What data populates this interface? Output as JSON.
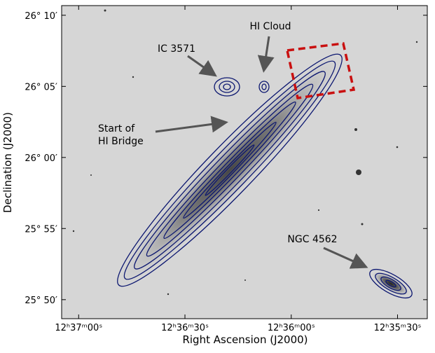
{
  "chart_data": {
    "type": "image",
    "xlabel": "Right Ascension (J2000)",
    "ylabel": "Declination (J2000)",
    "xlim": [
      189.27,
      188.84
    ],
    "ylim": [
      25.811,
      26.178
    ],
    "xticks": [
      {
        "value": 189.25,
        "label": "12ʰ37ᵐ00ˢ"
      },
      {
        "value": 189.125,
        "label": "12ʰ36ᵐ30ˢ"
      },
      {
        "value": 189.0,
        "label": "12ʰ36ᵐ00ˢ"
      },
      {
        "value": 188.875,
        "label": "12ʰ35ᵐ30ˢ"
      }
    ],
    "yticks": [
      {
        "value": 26.1667,
        "label": "26° 10′"
      },
      {
        "value": 26.0833,
        "label": "26° 05′"
      },
      {
        "value": 26.0,
        "label": "26° 00′"
      },
      {
        "value": 25.9167,
        "label": "25° 55′"
      },
      {
        "value": 25.8333,
        "label": "25° 50′"
      }
    ],
    "annotations": [
      {
        "lines": [
          "HI Cloud"
        ]
      },
      {
        "lines": [
          "IC 3571"
        ]
      },
      {
        "lines": [
          "Start of",
          "HI Bridge"
        ]
      },
      {
        "lines": [
          "NGC 4562"
        ]
      }
    ]
  }
}
